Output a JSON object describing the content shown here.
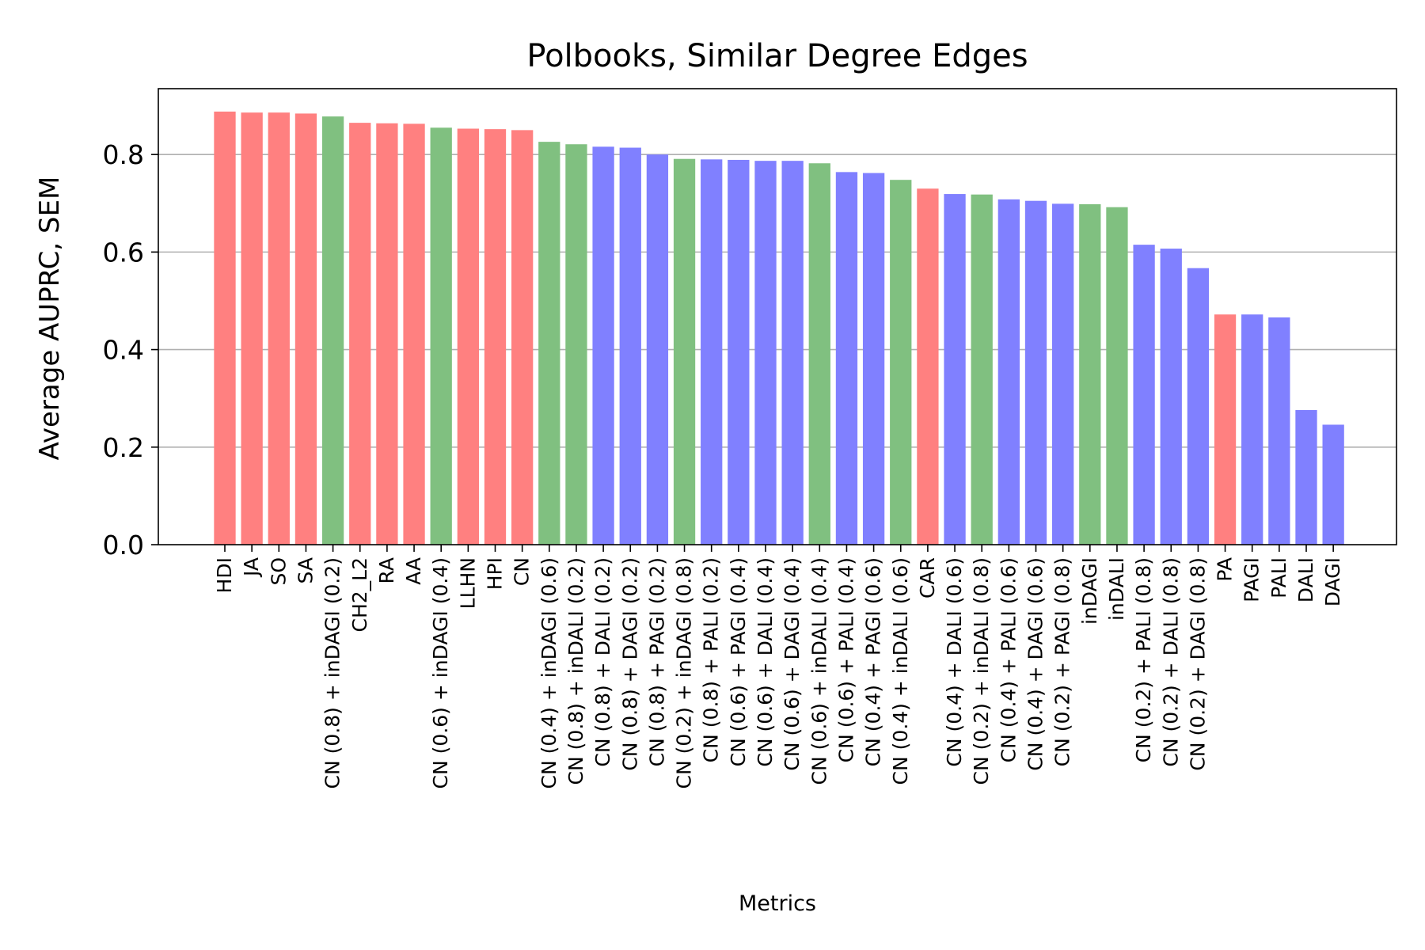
{
  "chart_data": {
    "type": "bar",
    "title": "Polbooks, Similar Degree Edges",
    "xlabel": "Metrics",
    "ylabel": "Average AUPRC, SEM",
    "ylim": [
      0,
      0.935
    ],
    "yticks": [
      "0.0",
      "0.2",
      "0.4",
      "0.6",
      "0.8"
    ],
    "grid": "y",
    "colors": {
      "red": "#ff8080",
      "green": "#80c080",
      "blue": "#8080ff"
    },
    "categories": [
      "HDI",
      "JA",
      "SO",
      "SA",
      "CN (0.8) + inDAGI (0.2)",
      "CH2_L2",
      "RA",
      "AA",
      "CN (0.6) + inDAGI (0.4)",
      "LLHN",
      "HPI",
      "CN",
      "CN (0.4) + inDAGI (0.6)",
      "CN (0.8) + inDALI (0.2)",
      "CN (0.8) + DALI (0.2)",
      "CN (0.8) + DAGI (0.2)",
      "CN (0.8) + PAGI (0.2)",
      "CN (0.2) + inDAGI (0.8)",
      "CN (0.8) + PALI (0.2)",
      "CN (0.6) + PAGI (0.4)",
      "CN (0.6) + DALI (0.4)",
      "CN (0.6) + DAGI (0.4)",
      "CN (0.6) + inDALI (0.4)",
      "CN (0.6) + PALI (0.4)",
      "CN (0.4) + PAGI (0.6)",
      "CN (0.4) + inDALI (0.6)",
      "CAR",
      "CN (0.4) + DALI (0.6)",
      "CN (0.2) + inDALI (0.8)",
      "CN (0.4) + PALI (0.6)",
      "CN (0.4) + DAGI (0.6)",
      "CN (0.2) + PAGI (0.8)",
      "inDAGI",
      "inDALI",
      "CN (0.2) + PALI (0.8)",
      "CN (0.2) + DALI (0.8)",
      "CN (0.2) + DAGI (0.8)",
      "PA",
      "PAGI",
      "PALI",
      "DALI",
      "DAGI"
    ],
    "values": [
      0.888,
      0.886,
      0.886,
      0.884,
      0.878,
      0.865,
      0.864,
      0.863,
      0.855,
      0.853,
      0.852,
      0.85,
      0.826,
      0.821,
      0.816,
      0.814,
      0.8,
      0.791,
      0.79,
      0.789,
      0.787,
      0.787,
      0.782,
      0.764,
      0.762,
      0.748,
      0.73,
      0.719,
      0.718,
      0.708,
      0.705,
      0.699,
      0.698,
      0.692,
      0.615,
      0.607,
      0.567,
      0.472,
      0.472,
      0.466,
      0.276,
      0.246
    ],
    "bar_colors": [
      "red",
      "red",
      "red",
      "red",
      "green",
      "red",
      "red",
      "red",
      "green",
      "red",
      "red",
      "red",
      "green",
      "green",
      "blue",
      "blue",
      "blue",
      "green",
      "blue",
      "blue",
      "blue",
      "blue",
      "green",
      "blue",
      "blue",
      "green",
      "red",
      "blue",
      "green",
      "blue",
      "blue",
      "blue",
      "green",
      "green",
      "blue",
      "blue",
      "blue",
      "red",
      "blue",
      "blue",
      "blue",
      "blue"
    ]
  }
}
